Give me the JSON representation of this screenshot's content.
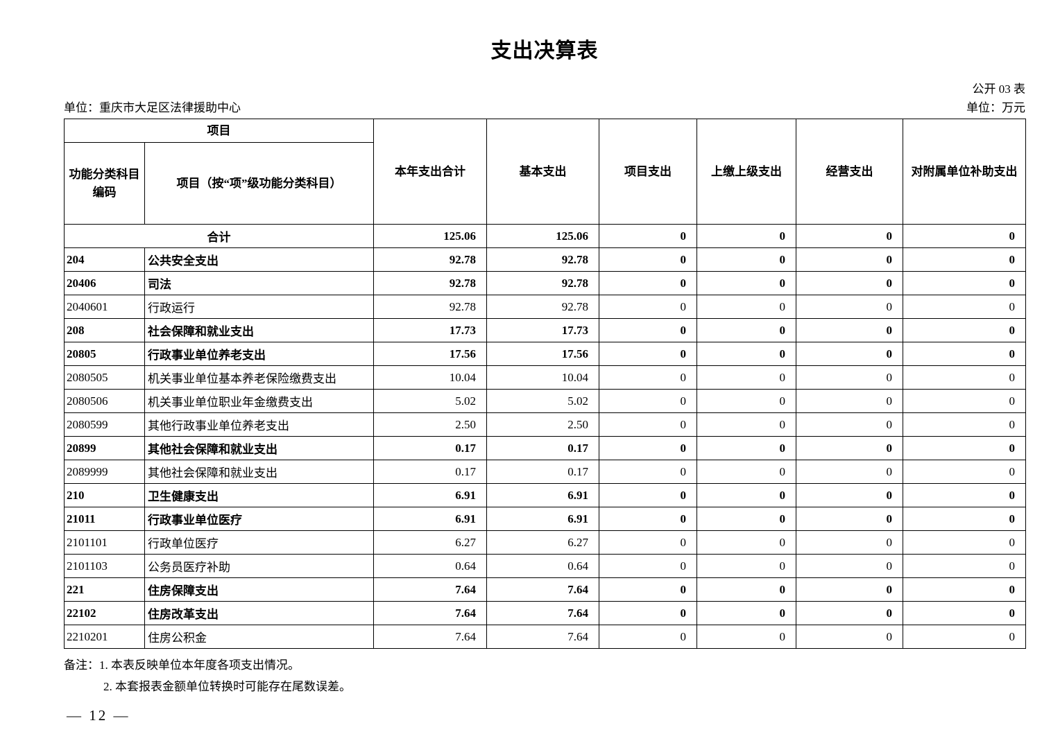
{
  "page": {
    "title": "支出决算表",
    "table_code": "公开 03 表",
    "unit_name": "单位：重庆市大足区法律援助中心",
    "unit_measure": "单位：万元",
    "page_number": "— 12 —"
  },
  "table": {
    "header": {
      "project_group": "项目",
      "col_code": "功能分类科目编码",
      "col_item": "项目（按“项”级功能分类科目）",
      "col_total": "本年支出合计",
      "col_basic": "基本支出",
      "col_project": "项目支出",
      "col_upper": "上缴上级支出",
      "col_operating": "经营支出",
      "col_subsidy": "对附属单位补助支出"
    },
    "rows": [
      {
        "code": "",
        "name": "合计",
        "total": "125.06",
        "basic": "125.06",
        "project": "0",
        "upper": "0",
        "operating": "0",
        "subsidy": "0",
        "bold": true,
        "merged": true
      },
      {
        "code": "204",
        "name": "公共安全支出",
        "total": "92.78",
        "basic": "92.78",
        "project": "0",
        "upper": "0",
        "operating": "0",
        "subsidy": "0",
        "bold": true,
        "merged": false
      },
      {
        "code": "20406",
        "name": "司法",
        "total": "92.78",
        "basic": "92.78",
        "project": "0",
        "upper": "0",
        "operating": "0",
        "subsidy": "0",
        "bold": true,
        "merged": false
      },
      {
        "code": "2040601",
        "name": "行政运行",
        "total": "92.78",
        "basic": "92.78",
        "project": "0",
        "upper": "0",
        "operating": "0",
        "subsidy": "0",
        "bold": false,
        "merged": false
      },
      {
        "code": "208",
        "name": "社会保障和就业支出",
        "total": "17.73",
        "basic": "17.73",
        "project": "0",
        "upper": "0",
        "operating": "0",
        "subsidy": "0",
        "bold": true,
        "merged": false
      },
      {
        "code": "20805",
        "name": "行政事业单位养老支出",
        "total": "17.56",
        "basic": "17.56",
        "project": "0",
        "upper": "0",
        "operating": "0",
        "subsidy": "0",
        "bold": true,
        "merged": false
      },
      {
        "code": "2080505",
        "name": "机关事业单位基本养老保险缴费支出",
        "total": "10.04",
        "basic": "10.04",
        "project": "0",
        "upper": "0",
        "operating": "0",
        "subsidy": "0",
        "bold": false,
        "merged": false
      },
      {
        "code": "2080506",
        "name": "机关事业单位职业年金缴费支出",
        "total": "5.02",
        "basic": "5.02",
        "project": "0",
        "upper": "0",
        "operating": "0",
        "subsidy": "0",
        "bold": false,
        "merged": false
      },
      {
        "code": "2080599",
        "name": "其他行政事业单位养老支出",
        "total": "2.50",
        "basic": "2.50",
        "project": "0",
        "upper": "0",
        "operating": "0",
        "subsidy": "0",
        "bold": false,
        "merged": false
      },
      {
        "code": "20899",
        "name": "其他社会保障和就业支出",
        "total": "0.17",
        "basic": "0.17",
        "project": "0",
        "upper": "0",
        "operating": "0",
        "subsidy": "0",
        "bold": true,
        "merged": false
      },
      {
        "code": "2089999",
        "name": "其他社会保障和就业支出",
        "total": "0.17",
        "basic": "0.17",
        "project": "0",
        "upper": "0",
        "operating": "0",
        "subsidy": "0",
        "bold": false,
        "merged": false
      },
      {
        "code": "210",
        "name": "卫生健康支出",
        "total": "6.91",
        "basic": "6.91",
        "project": "0",
        "upper": "0",
        "operating": "0",
        "subsidy": "0",
        "bold": true,
        "merged": false
      },
      {
        "code": "21011",
        "name": "行政事业单位医疗",
        "total": "6.91",
        "basic": "6.91",
        "project": "0",
        "upper": "0",
        "operating": "0",
        "subsidy": "0",
        "bold": true,
        "merged": false
      },
      {
        "code": "2101101",
        "name": "行政单位医疗",
        "total": "6.27",
        "basic": "6.27",
        "project": "0",
        "upper": "0",
        "operating": "0",
        "subsidy": "0",
        "bold": false,
        "merged": false
      },
      {
        "code": "2101103",
        "name": "公务员医疗补助",
        "total": "0.64",
        "basic": "0.64",
        "project": "0",
        "upper": "0",
        "operating": "0",
        "subsidy": "0",
        "bold": false,
        "merged": false
      },
      {
        "code": "221",
        "name": "住房保障支出",
        "total": "7.64",
        "basic": "7.64",
        "project": "0",
        "upper": "0",
        "operating": "0",
        "subsidy": "0",
        "bold": true,
        "merged": false
      },
      {
        "code": "22102",
        "name": "住房改革支出",
        "total": "7.64",
        "basic": "7.64",
        "project": "0",
        "upper": "0",
        "operating": "0",
        "subsidy": "0",
        "bold": true,
        "merged": false
      },
      {
        "code": "2210201",
        "name": "住房公积金",
        "total": "7.64",
        "basic": "7.64",
        "project": "0",
        "upper": "0",
        "operating": "0",
        "subsidy": "0",
        "bold": false,
        "merged": false
      }
    ]
  },
  "notes": {
    "line1": "备注：1. 本表反映单位本年度各项支出情况。",
    "line2": "2. 本套报表金额单位转换时可能存在尾数误差。"
  }
}
